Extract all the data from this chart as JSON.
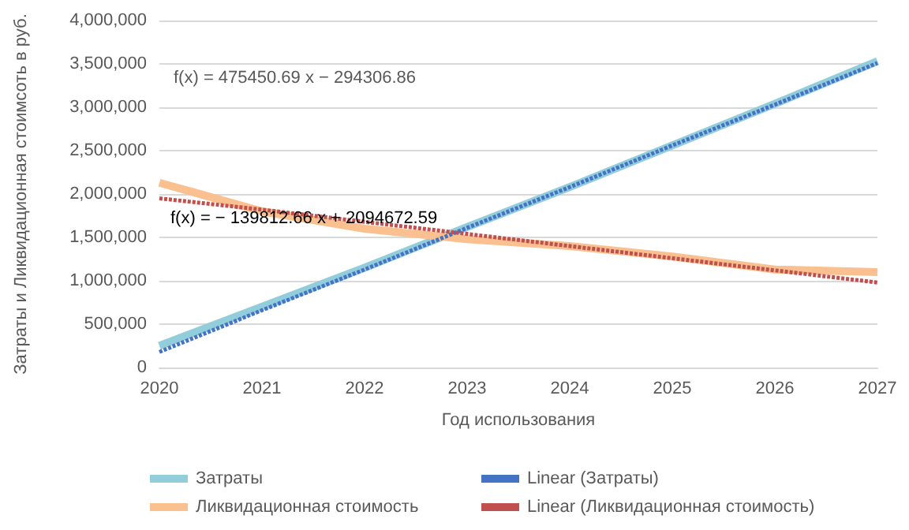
{
  "chart_data": {
    "type": "line",
    "xlabel": "Год использования",
    "ylabel": "Затраты и Ликвидационная стоимсоть в руб.",
    "x": [
      2020,
      2021,
      2022,
      2023,
      2024,
      2025,
      2026,
      2027
    ],
    "series": [
      {
        "name": "Затраты",
        "color": "#92cddc",
        "values": [
          250000,
          700000,
          1150000,
          1620000,
          2080000,
          2560000,
          3040000,
          3530000
        ]
      },
      {
        "name": "Linear (Затраты)",
        "color": "#4472c4",
        "line_style": "dotted",
        "values": [
          180000,
          660000,
          1130000,
          1610000,
          2080000,
          2560000,
          3030000,
          3510000
        ]
      },
      {
        "name": "Ликвидационная стоимость",
        "color": "#fac08f",
        "values": [
          2130000,
          1800000,
          1600000,
          1480000,
          1400000,
          1280000,
          1130000,
          1100000
        ]
      },
      {
        "name": "Linear (Ликвидационная стоимость)",
        "color": "#c0504d",
        "line_style": "dotted",
        "values": [
          1950000,
          1820000,
          1680000,
          1540000,
          1400000,
          1260000,
          1120000,
          980000
        ]
      }
    ],
    "xlim": [
      2020,
      2027
    ],
    "xticks": [
      2020,
      2021,
      2022,
      2023,
      2024,
      2025,
      2026,
      2027
    ],
    "ylim": [
      0,
      4000000
    ],
    "yticks": [
      0,
      {
        "value": 500000,
        "label": "500,000"
      },
      {
        "value": 1000000,
        "label": "1,000,000"
      },
      {
        "value": 1500000,
        "label": "1,500,000"
      },
      {
        "value": 2000000,
        "label": "2,000,000"
      },
      {
        "value": 2500000,
        "label": "2,500,000"
      },
      {
        "value": 3000000,
        "label": "3,000,000"
      },
      {
        "value": 3500000,
        "label": "3,500,000"
      },
      {
        "value": 4000000,
        "label": "4,000,000"
      }
    ],
    "grid": "y",
    "legend": "bottom",
    "marker": "none",
    "annotations": [
      "f(x) = 475450.69 x − 294306.86",
      "f(x) = − 139812.66 x + 2094672.59"
    ]
  }
}
